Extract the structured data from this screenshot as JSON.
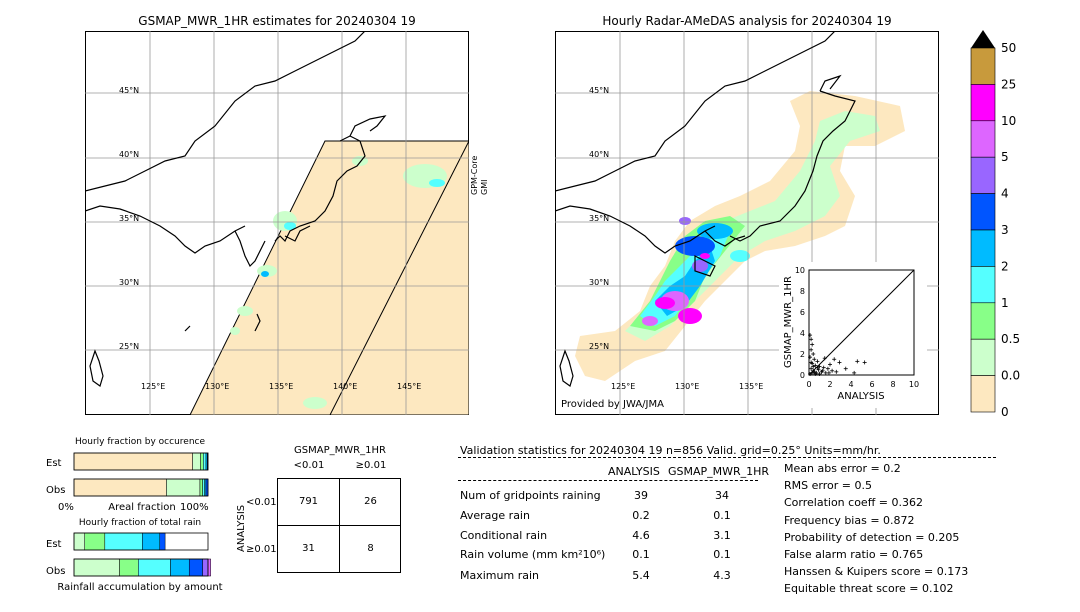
{
  "left_map": {
    "title": "GSMAP_MWR_1HR estimates for 20240304 19",
    "lat_labels": [
      "45°N",
      "40°N",
      "35°N",
      "30°N",
      "25°N"
    ],
    "lon_labels": [
      "125°E",
      "130°E",
      "135°E",
      "140°E",
      "145°E"
    ],
    "swath_label_1": "GPM-Core",
    "swath_label_2": "GMI"
  },
  "right_map": {
    "title": "Hourly Radar-AMeDAS analysis for 20240304 19",
    "lat_labels": [
      "45°N",
      "40°N",
      "35°N",
      "30°N",
      "25°N"
    ],
    "lon_labels": [
      "125°E",
      "130°E",
      "135°E"
    ],
    "credit": "Provided by JWA/JMA"
  },
  "colorbar": {
    "labels": [
      "50",
      "25",
      "10",
      "5",
      "4",
      "3",
      "2",
      "1",
      "0.5",
      "0.01",
      "0"
    ],
    "colors": [
      "#c89a3c",
      "#ff00ff",
      "#dd66ff",
      "#9966ff",
      "#0055ff",
      "#00bbff",
      "#55ffff",
      "#88ff88",
      "#ccffcc",
      "#fde8c0"
    ]
  },
  "chart_data": [
    {
      "type": "scatter",
      "xlabel": "ANALYSIS",
      "ylabel": "GSMAP_MWR_1HR",
      "xlim": [
        0,
        10
      ],
      "ylim": [
        0,
        10
      ],
      "xticks": [
        "0",
        "2",
        "4",
        "6",
        "8",
        "10"
      ],
      "yticks": [
        "0",
        "2",
        "4",
        "6",
        "8",
        "10"
      ],
      "points": [
        [
          0.1,
          3.8
        ],
        [
          0.2,
          3.4
        ],
        [
          0.3,
          2.9
        ],
        [
          0.2,
          2.4
        ],
        [
          0.4,
          2.0
        ],
        [
          0.1,
          1.7
        ],
        [
          0.5,
          1.5
        ],
        [
          0.8,
          1.3
        ],
        [
          0.3,
          1.1
        ],
        [
          0.6,
          0.9
        ],
        [
          1.0,
          0.8
        ],
        [
          1.4,
          0.7
        ],
        [
          0.2,
          0.6
        ],
        [
          0.9,
          0.5
        ],
        [
          1.8,
          0.6
        ],
        [
          0.4,
          0.4
        ],
        [
          1.2,
          0.3
        ],
        [
          2.2,
          0.4
        ],
        [
          0.7,
          0.2
        ],
        [
          1.6,
          0.2
        ],
        [
          0.1,
          0.1
        ],
        [
          2.6,
          0.3
        ],
        [
          1.0,
          0.1
        ],
        [
          0.3,
          0.2
        ],
        [
          2.0,
          1.0
        ],
        [
          2.4,
          1.5
        ],
        [
          2.9,
          1.2
        ],
        [
          1.5,
          1.6
        ],
        [
          4.6,
          1.3
        ],
        [
          5.3,
          1.2
        ],
        [
          4.3,
          0.2
        ],
        [
          3.5,
          0.6
        ],
        [
          0.5,
          0.3
        ],
        [
          0.8,
          0.7
        ],
        [
          1.3,
          0.4
        ],
        [
          0.2,
          1.2
        ],
        [
          0.6,
          0.1
        ],
        [
          1.9,
          0.2
        ],
        [
          0.4,
          0.8
        ]
      ]
    },
    {
      "type": "bar",
      "title": "Hourly fraction by occurence",
      "categories": [
        "Est",
        "Obs"
      ],
      "xlabel": "Areal fraction",
      "xticks": [
        "0%",
        "100%"
      ],
      "series": [
        {
          "color": "#fde8c0",
          "values": [
            0.885,
            0.69
          ]
        },
        {
          "color": "#ccffcc",
          "values": [
            0.06,
            0.25
          ]
        },
        {
          "color": "#88ff88",
          "values": [
            0.02,
            0.02
          ]
        },
        {
          "color": "#55ffff",
          "values": [
            0.02,
            0.015
          ]
        },
        {
          "color": "#00bbff",
          "values": [
            0.01,
            0.01
          ]
        },
        {
          "color": "#0055ff",
          "values": [
            0.005,
            0.015
          ]
        }
      ]
    },
    {
      "type": "bar",
      "title": "Hourly fraction of total rain",
      "categories": [
        "Est",
        "Obs"
      ],
      "xlabel": "Rainfall accumulation by amount",
      "series": [
        {
          "color": "#ccffcc",
          "values": [
            0.08,
            0.34
          ]
        },
        {
          "color": "#88ff88",
          "values": [
            0.15,
            0.14
          ]
        },
        {
          "color": "#55ffff",
          "values": [
            0.28,
            0.24
          ]
        },
        {
          "color": "#00bbff",
          "values": [
            0.13,
            0.14
          ]
        },
        {
          "color": "#0055ff",
          "values": [
            0.04,
            0.1
          ]
        },
        {
          "color": "#9966ff",
          "values": [
            0.0,
            0.04
          ]
        },
        {
          "color": "#dd66ff",
          "values": [
            0.0,
            0.02
          ]
        }
      ]
    }
  ],
  "contingency": {
    "title": "GSMAP_MWR_1HR",
    "col_lt": "<0.01",
    "col_ge": "≥0.01",
    "row_axis": "ANALYSIS",
    "row_lt": "<0.01",
    "row_ge": "≥0.01",
    "cells": [
      "791",
      "26",
      "31",
      "8"
    ]
  },
  "stats": {
    "header": "Validation statistics for 20240304 19  n=856 Valid. grid=0.25° Units=mm/hr.",
    "col_analysis": "ANALYSIS",
    "col_gsmap": "GSMAP_MWR_1HR",
    "rows": [
      {
        "label": "Num of gridpoints raining",
        "a": "39",
        "g": "34"
      },
      {
        "label": "Average rain",
        "a": "0.2",
        "g": "0.1"
      },
      {
        "label": "Conditional rain",
        "a": "4.6",
        "g": "3.1"
      },
      {
        "label": "Rain volume (mm km²10⁶)",
        "a": "0.1",
        "g": "0.1"
      },
      {
        "label": "Maximum rain",
        "a": "5.4",
        "g": "4.3"
      }
    ],
    "scores": [
      "Mean abs error =    0.2",
      "RMS error =    0.5",
      "Correlation coeff =  0.362",
      "Frequency bias =  0.872",
      "Probability of detection =  0.205",
      "False alarm ratio =  0.765",
      "Hanssen & Kuipers score =  0.173",
      "Equitable threat score =  0.102"
    ]
  }
}
